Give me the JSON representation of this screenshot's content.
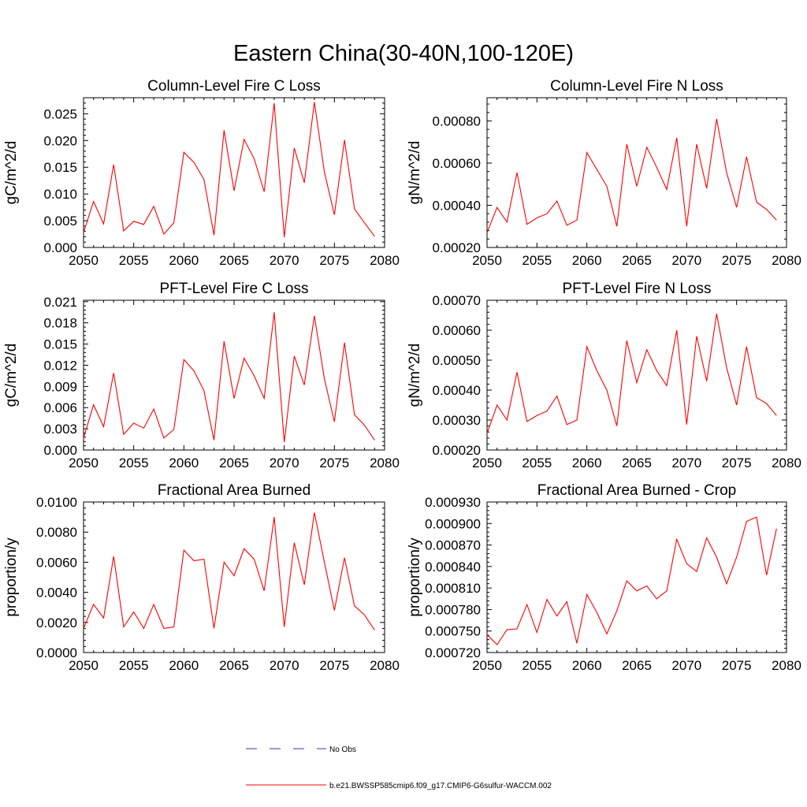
{
  "figure": {
    "title": "Eastern China(30-40N,100-120E)"
  },
  "legend": {
    "items": [
      {
        "label": "No Obs",
        "color": "#3333cc",
        "style": "dashed"
      },
      {
        "label": "b.e21.BWSSP585cmip6.f09_g17.CMIP6-G6sulfur-WACCM.002",
        "color": "#ff0000",
        "style": "solid"
      }
    ]
  },
  "chart_data": [
    {
      "type": "line",
      "title": "Column-Level Fire C Loss",
      "ylabel": "gC/m^2/d",
      "xlim": [
        2050,
        2080
      ],
      "ylim": [
        0.0,
        0.028
      ],
      "xticks": [
        2050,
        2055,
        2060,
        2065,
        2070,
        2075,
        2080
      ],
      "xtick_labels": [
        "2050",
        "2055",
        "2060",
        "2065",
        "2070",
        "2075",
        "2080"
      ],
      "yticks": [
        0.0,
        0.005,
        0.01,
        0.015,
        0.02,
        0.025
      ],
      "ytick_labels": [
        "0.000",
        "0.005",
        "0.010",
        "0.015",
        "0.020",
        "0.025"
      ],
      "x": [
        2050,
        2051,
        2052,
        2053,
        2054,
        2055,
        2056,
        2057,
        2058,
        2059,
        2060,
        2061,
        2062,
        2063,
        2064,
        2065,
        2066,
        2067,
        2068,
        2069,
        2070,
        2071,
        2072,
        2073,
        2074,
        2075,
        2076,
        2077,
        2078,
        2079
      ],
      "series": [
        {
          "color": "#ff0000",
          "values": [
            0.0028,
            0.0086,
            0.0044,
            0.0155,
            0.0031,
            0.0049,
            0.0043,
            0.0077,
            0.0025,
            0.0046,
            0.0178,
            0.0159,
            0.0127,
            0.0023,
            0.0219,
            0.0106,
            0.0202,
            0.0166,
            0.0104,
            0.027,
            0.0019,
            0.0186,
            0.0121,
            0.0272,
            0.0141,
            0.0061,
            0.0201,
            0.0072,
            0.0046,
            0.0021
          ]
        }
      ]
    },
    {
      "type": "line",
      "title": "Column-Level Fire N Loss",
      "ylabel": "gN/m^2/d",
      "xlim": [
        2050,
        2080
      ],
      "ylim": [
        0.0002,
        0.00091
      ],
      "xticks": [
        2050,
        2055,
        2060,
        2065,
        2070,
        2075,
        2080
      ],
      "xtick_labels": [
        "2050",
        "2055",
        "2060",
        "2065",
        "2070",
        "2075",
        "2080"
      ],
      "yticks": [
        0.0002,
        0.0004,
        0.0006,
        0.0008
      ],
      "ytick_labels": [
        "0.00020",
        "0.00040",
        "0.00060",
        "0.00080"
      ],
      "x": [
        2050,
        2051,
        2052,
        2053,
        2054,
        2055,
        2056,
        2057,
        2058,
        2059,
        2060,
        2061,
        2062,
        2063,
        2064,
        2065,
        2066,
        2067,
        2068,
        2069,
        2070,
        2071,
        2072,
        2073,
        2074,
        2075,
        2076,
        2077,
        2078,
        2079
      ],
      "series": [
        {
          "color": "#ff0000",
          "values": [
            0.00027,
            0.00039,
            0.00032,
            0.000555,
            0.00031,
            0.00034,
            0.00036,
            0.00042,
            0.000305,
            0.00033,
            0.00065,
            0.00057,
            0.00049,
            0.0003,
            0.00069,
            0.00049,
            0.000675,
            0.00058,
            0.000475,
            0.00072,
            0.0003,
            0.00069,
            0.00048,
            0.00081,
            0.000555,
            0.00039,
            0.00063,
            0.000415,
            0.00038,
            0.00033
          ]
        }
      ]
    },
    {
      "type": "line",
      "title": "PFT-Level Fire C Loss",
      "ylabel": "gC/m^2/d",
      "xlim": [
        2050,
        2080
      ],
      "ylim": [
        0.0,
        0.0212
      ],
      "xticks": [
        2050,
        2055,
        2060,
        2065,
        2070,
        2075,
        2080
      ],
      "xtick_labels": [
        "2050",
        "2055",
        "2060",
        "2065",
        "2070",
        "2075",
        "2080"
      ],
      "yticks": [
        0.0,
        0.003,
        0.006,
        0.009,
        0.012,
        0.015,
        0.018,
        0.021
      ],
      "ytick_labels": [
        "0.000",
        "0.003",
        "0.006",
        "0.009",
        "0.012",
        "0.015",
        "0.018",
        "0.021"
      ],
      "x": [
        2050,
        2051,
        2052,
        2053,
        2054,
        2055,
        2056,
        2057,
        2058,
        2059,
        2060,
        2061,
        2062,
        2063,
        2064,
        2065,
        2066,
        2067,
        2068,
        2069,
        2070,
        2071,
        2072,
        2073,
        2074,
        2075,
        2076,
        2077,
        2078,
        2079
      ],
      "series": [
        {
          "color": "#ff0000",
          "values": [
            0.0017,
            0.0064,
            0.0033,
            0.0109,
            0.0022,
            0.0038,
            0.0031,
            0.0058,
            0.0017,
            0.0029,
            0.0128,
            0.0112,
            0.0084,
            0.0014,
            0.0154,
            0.0073,
            0.013,
            0.0105,
            0.0073,
            0.0195,
            0.0011,
            0.0133,
            0.0092,
            0.019,
            0.0101,
            0.004,
            0.0152,
            0.005,
            0.0035,
            0.0014
          ]
        }
      ]
    },
    {
      "type": "line",
      "title": "PFT-Level Fire N Loss",
      "ylabel": "gN/m^2/d",
      "xlim": [
        2050,
        2080
      ],
      "ylim": [
        0.0002,
        0.0007
      ],
      "xticks": [
        2050,
        2055,
        2060,
        2065,
        2070,
        2075,
        2080
      ],
      "xtick_labels": [
        "2050",
        "2055",
        "2060",
        "2065",
        "2070",
        "2075",
        "2080"
      ],
      "yticks": [
        0.0002,
        0.0003,
        0.0004,
        0.0005,
        0.0006,
        0.0007
      ],
      "ytick_labels": [
        "0.00020",
        "0.00030",
        "0.00040",
        "0.00050",
        "0.00060",
        "0.00070"
      ],
      "x": [
        2050,
        2051,
        2052,
        2053,
        2054,
        2055,
        2056,
        2057,
        2058,
        2059,
        2060,
        2061,
        2062,
        2063,
        2064,
        2065,
        2066,
        2067,
        2068,
        2069,
        2070,
        2071,
        2072,
        2073,
        2074,
        2075,
        2076,
        2077,
        2078,
        2079
      ],
      "series": [
        {
          "color": "#ff0000",
          "values": [
            0.000255,
            0.00035,
            0.0003,
            0.00046,
            0.000295,
            0.000315,
            0.00033,
            0.00038,
            0.000285,
            0.0003,
            0.000545,
            0.000465,
            0.0004,
            0.00028,
            0.000565,
            0.000425,
            0.000535,
            0.000465,
            0.000415,
            0.0006,
            0.000285,
            0.00058,
            0.00043,
            0.000655,
            0.000475,
            0.00035,
            0.000545,
            0.000375,
            0.000355,
            0.000315
          ]
        }
      ]
    },
    {
      "type": "line",
      "title": "Fractional Area Burned",
      "ylabel": "proportion/y",
      "xlim": [
        2050,
        2080
      ],
      "ylim": [
        0.0,
        0.01
      ],
      "xticks": [
        2050,
        2055,
        2060,
        2065,
        2070,
        2075,
        2080
      ],
      "xtick_labels": [
        "2050",
        "2055",
        "2060",
        "2065",
        "2070",
        "2075",
        "2080"
      ],
      "yticks": [
        0.0,
        0.002,
        0.004,
        0.006,
        0.008,
        0.01
      ],
      "ytick_labels": [
        "0.0000",
        "0.0020",
        "0.0040",
        "0.0060",
        "0.0080",
        "0.0100"
      ],
      "x": [
        2050,
        2051,
        2052,
        2053,
        2054,
        2055,
        2056,
        2057,
        2058,
        2059,
        2060,
        2061,
        2062,
        2063,
        2064,
        2065,
        2066,
        2067,
        2068,
        2069,
        2070,
        2071,
        2072,
        2073,
        2074,
        2075,
        2076,
        2077,
        2078,
        2079
      ],
      "series": [
        {
          "color": "#ff0000",
          "values": [
            0.0016,
            0.0032,
            0.0023,
            0.0064,
            0.0017,
            0.0027,
            0.0016,
            0.0032,
            0.0016,
            0.0017,
            0.0068,
            0.0061,
            0.0062,
            0.0016,
            0.006,
            0.0051,
            0.0069,
            0.0062,
            0.0041,
            0.009,
            0.0017,
            0.0073,
            0.0045,
            0.0093,
            0.006,
            0.0028,
            0.0063,
            0.0031,
            0.0025,
            0.0015
          ]
        }
      ]
    },
    {
      "type": "line",
      "title": "Fractional Area Burned - Crop",
      "ylabel": "proportion/y",
      "xlim": [
        2050,
        2080
      ],
      "ylim": [
        0.00072,
        0.00093
      ],
      "xticks": [
        2050,
        2055,
        2060,
        2065,
        2070,
        2075,
        2080
      ],
      "xtick_labels": [
        "2050",
        "2055",
        "2060",
        "2065",
        "2070",
        "2075",
        "2080"
      ],
      "yticks": [
        0.00072,
        0.00075,
        0.00078,
        0.00081,
        0.00084,
        0.00087,
        0.0009,
        0.00093
      ],
      "ytick_labels": [
        "0.000720",
        "0.000750",
        "0.000780",
        "0.000810",
        "0.000840",
        "0.000870",
        "0.000900",
        "0.000930"
      ],
      "x": [
        2050,
        2051,
        2052,
        2053,
        2054,
        2055,
        2056,
        2057,
        2058,
        2059,
        2060,
        2061,
        2062,
        2063,
        2064,
        2065,
        2066,
        2067,
        2068,
        2069,
        2070,
        2071,
        2072,
        2073,
        2074,
        2075,
        2076,
        2077,
        2078,
        2079
      ],
      "series": [
        {
          "color": "#ff0000",
          "values": [
            0.000745,
            0.000731,
            0.000752,
            0.000753,
            0.000787,
            0.000748,
            0.000794,
            0.000771,
            0.000791,
            0.000733,
            0.000801,
            0.000776,
            0.000746,
            0.000778,
            0.00082,
            0.000806,
            0.000813,
            0.000795,
            0.000806,
            0.000878,
            0.000844,
            0.000833,
            0.00088,
            0.000853,
            0.000816,
            0.000853,
            0.000903,
            0.000909,
            0.000828,
            0.000893
          ]
        }
      ]
    }
  ]
}
